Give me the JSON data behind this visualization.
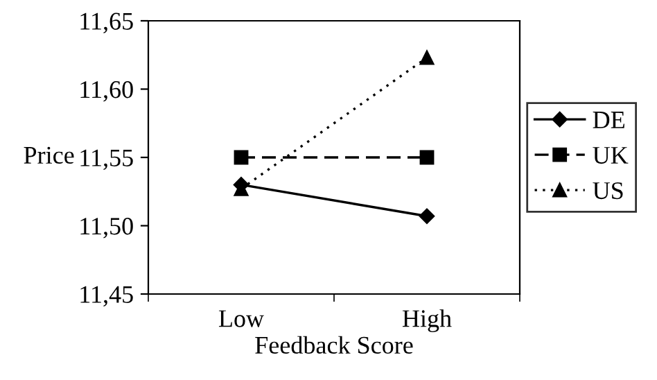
{
  "chart_data": {
    "type": "line",
    "xlabel": "Feedback Score",
    "ylabel": "Price",
    "categories": [
      "Low",
      "High"
    ],
    "series": [
      {
        "name": "DE",
        "color": "#000000",
        "marker": "diamond",
        "line_style": "solid",
        "values": [
          11.53,
          11.507
        ]
      },
      {
        "name": "UK",
        "color": "#000000",
        "marker": "square",
        "line_style": "dashed",
        "values": [
          11.55,
          11.55
        ]
      },
      {
        "name": "US",
        "color": "#000000",
        "marker": "triangle",
        "line_style": "dotted",
        "values": [
          11.527,
          11.623
        ]
      }
    ],
    "ylim": [
      11.45,
      11.65
    ],
    "yticks": [
      {
        "value": 11.45,
        "label": "11,45"
      },
      {
        "value": 11.5,
        "label": "11,50"
      },
      {
        "value": 11.55,
        "label": "11,55"
      },
      {
        "value": 11.6,
        "label": "11,60"
      },
      {
        "value": 11.65,
        "label": "11,65"
      }
    ],
    "grid": false,
    "legend": "right"
  }
}
